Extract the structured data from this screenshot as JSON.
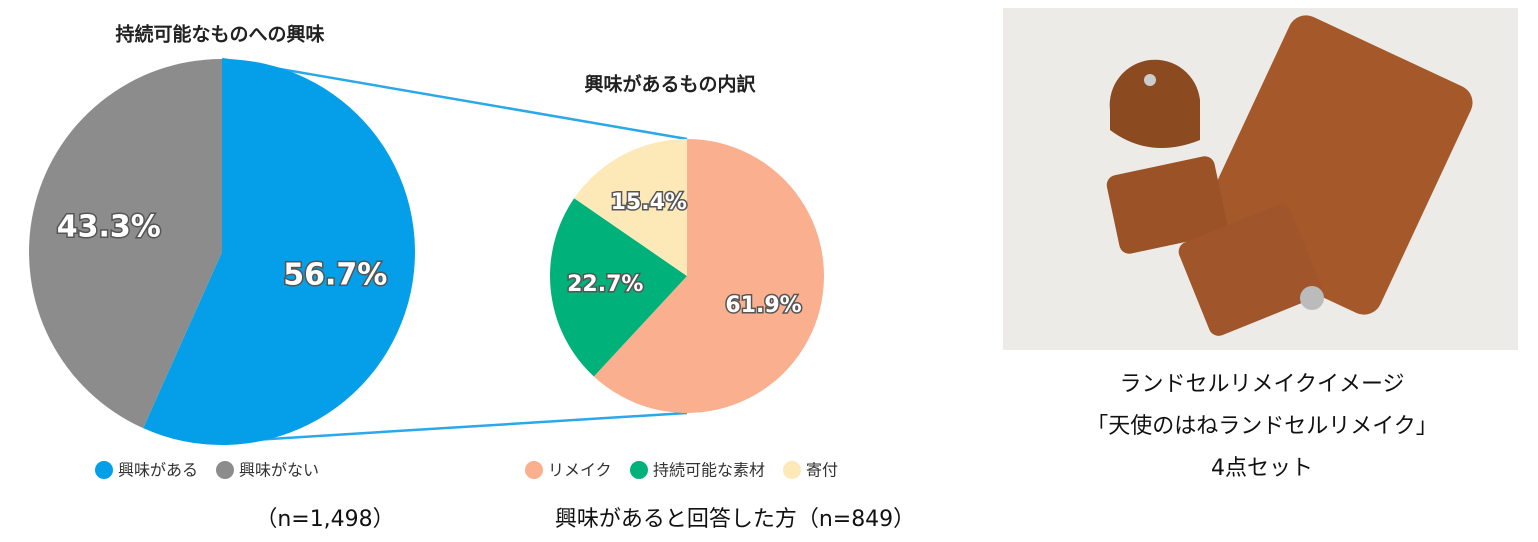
{
  "chart_data": [
    {
      "type": "pie",
      "title": "持続可能なものへの興味",
      "categories": [
        "興味がある",
        "興味がない"
      ],
      "values": [
        56.7,
        43.3
      ],
      "value_labels": [
        "56.7%",
        "43.3%"
      ],
      "colors": [
        "#049fe8",
        "#8c8c8c"
      ],
      "note": "（n=1,498）"
    },
    {
      "type": "pie",
      "title": "興味があるもの内訳",
      "categories": [
        "リメイク",
        "持続可能な素材",
        "寄付"
      ],
      "values": [
        61.9,
        22.7,
        15.4
      ],
      "value_labels": [
        "61.9%",
        "22.7%",
        "15.4%"
      ],
      "colors": [
        "#fab08e",
        "#00b27a",
        "#fde9b7"
      ],
      "note": "興味があると回答した方（n=849）"
    }
  ],
  "image_caption": [
    "ランドセルリメイクイメージ",
    "「天使のはねランドセルリメイク」",
    "4点セット"
  ]
}
